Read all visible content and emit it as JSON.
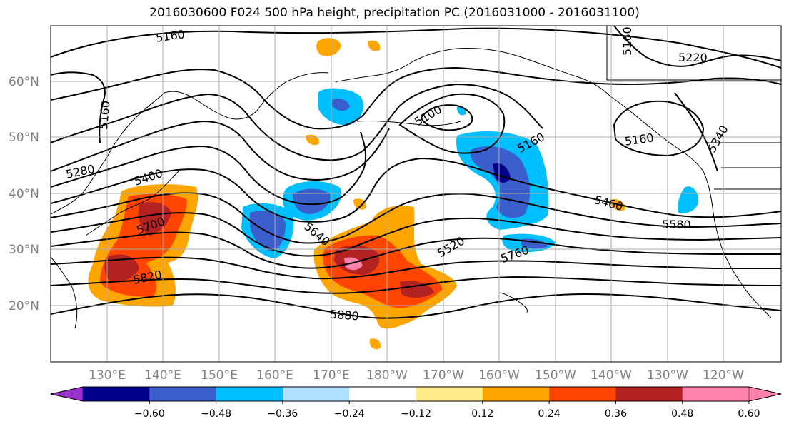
{
  "title": "2016030600 F024 500 hPa height, precipitation PC (2016031000 - 2016031100)",
  "lat_labels": [
    "60°N",
    "50°N",
    "40°N",
    "30°N",
    "20°N"
  ],
  "lon_labels": [
    "130°E",
    "140°E",
    "150°E",
    "160°E",
    "170°E",
    "180°W",
    "170°W",
    "160°W",
    "150°W",
    "140°W",
    "130°W",
    "120°W"
  ],
  "contour_labels": [
    "5160",
    "5220",
    "5160",
    "5100",
    "5160",
    "5160",
    "5280",
    "5400",
    "5460",
    "5580",
    "5700",
    "5520",
    "5640",
    "5760",
    "5820",
    "5880",
    "5160",
    "5340"
  ],
  "colorbar": {
    "ticks": [
      "−0.60",
      "−0.48",
      "−0.36",
      "−0.24",
      "−0.12",
      "0.12",
      "0.24",
      "0.36",
      "0.48",
      "0.60"
    ],
    "colors": [
      "#9932cc",
      "#00008b",
      "#3a5fcd",
      "#00bfff",
      "#b0e0ff",
      "#ffffff",
      "#ffec8b",
      "#ffa500",
      "#ff4500",
      "#b22222",
      "#ff82ab",
      "#ff82ab"
    ]
  },
  "colors": {
    "purple": "#9932cc",
    "navy": "#00008b",
    "royal_blue": "#3a5fcd",
    "deep_sky": "#00bfff",
    "light_blue": "#b0e0ff",
    "light_yellow": "#ffec8b",
    "orange": "#ffa500",
    "orange_red": "#ff4500",
    "firebrick": "#b22222",
    "pink": "#ff82ab",
    "grid": "#a9a9a9"
  }
}
